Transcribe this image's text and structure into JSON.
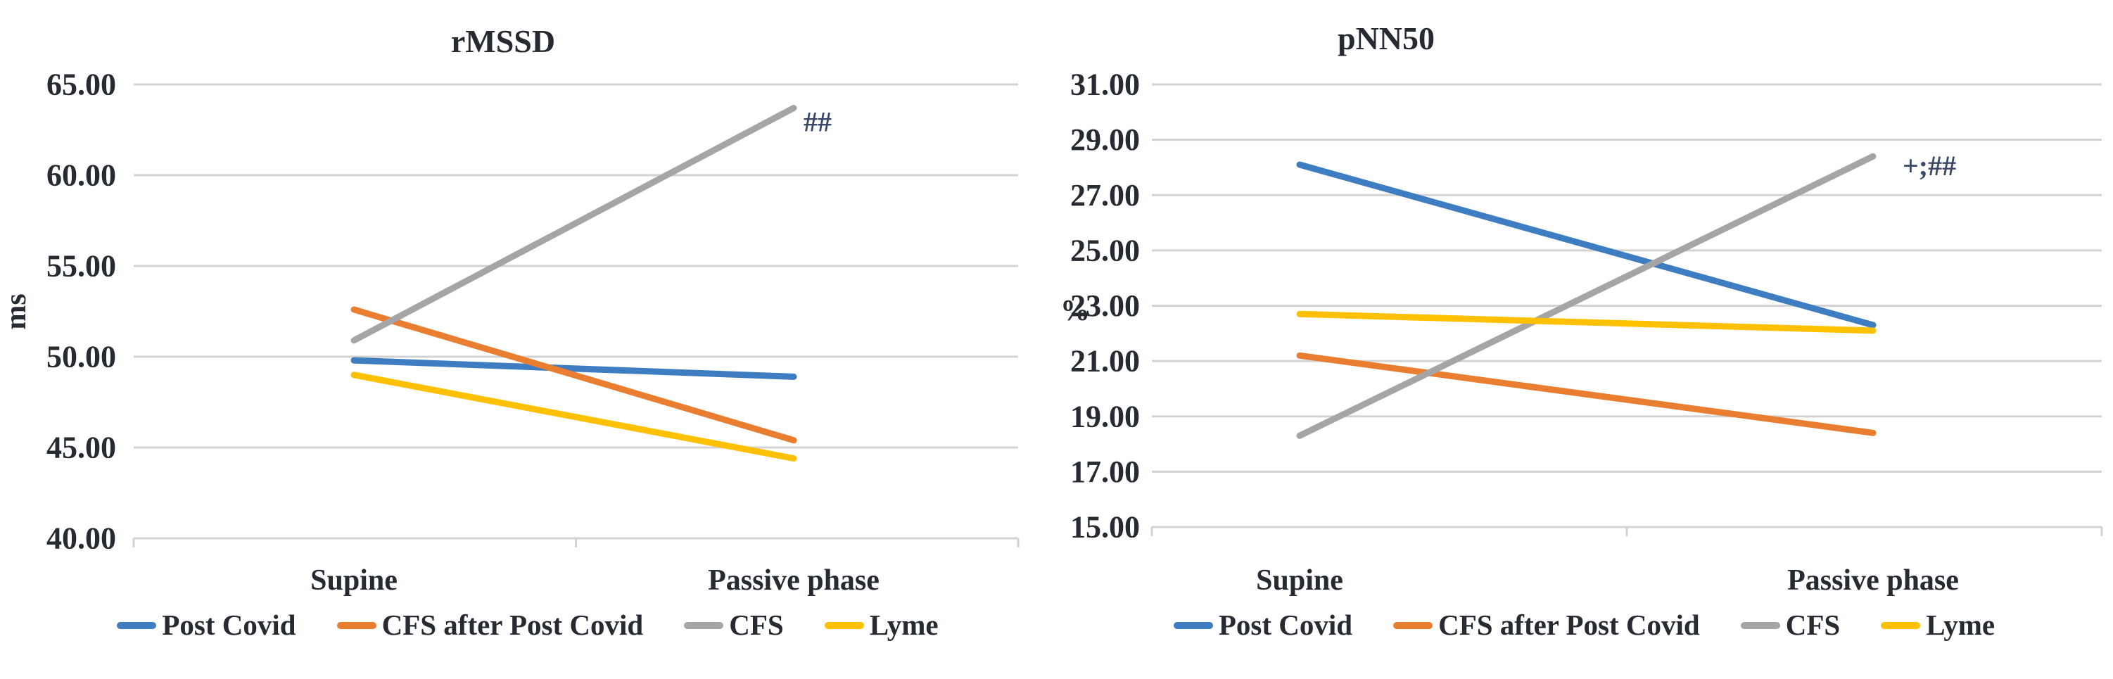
{
  "palette": {
    "text_color": "#262A31",
    "grid_color": "#D3D3D3",
    "annotation_color": "#3A4766",
    "background": "#FFFFFF"
  },
  "chart_data": [
    {
      "type": "line",
      "title": "rMSSD",
      "y_axis_label": "ms",
      "categories": [
        "Supine",
        "Passive phase"
      ],
      "y_ticks": [
        65,
        60,
        55,
        50,
        45,
        40
      ],
      "tick_format_decimals": 2,
      "ylim": [
        40,
        65
      ],
      "grid": true,
      "legend_position": "bottom",
      "annotation": {
        "text": "##",
        "attached_to_series": "CFS",
        "at_category": "Passive phase"
      },
      "series": [
        {
          "name": "Post Covid",
          "color": "#3E7DC1",
          "values": [
            49.8,
            48.9
          ]
        },
        {
          "name": "CFS after Post Covid",
          "color": "#E97E30",
          "values": [
            52.6,
            45.4
          ]
        },
        {
          "name": "CFS",
          "color": "#A5A5A5",
          "values": [
            50.9,
            63.7
          ]
        },
        {
          "name": "Lyme",
          "color": "#FFC000",
          "values": [
            49.0,
            44.4
          ]
        }
      ]
    },
    {
      "type": "line",
      "title": "pNN50",
      "y_axis_label": "%",
      "categories": [
        "Supine",
        "Passive phase"
      ],
      "y_ticks": [
        31,
        29,
        27,
        25,
        23,
        21,
        19,
        17,
        15
      ],
      "tick_format_decimals": 2,
      "ylim": [
        15,
        31
      ],
      "grid": true,
      "legend_position": "bottom",
      "annotation": {
        "text": "+;##",
        "attached_to_series": "CFS",
        "at_category": "Passive phase"
      },
      "series": [
        {
          "name": "Post Covid",
          "color": "#3E7DC1",
          "values": [
            28.1,
            22.3
          ]
        },
        {
          "name": "CFS after Post Covid",
          "color": "#E97E30",
          "values": [
            21.2,
            18.4
          ]
        },
        {
          "name": "CFS",
          "color": "#A5A5A5",
          "values": [
            18.3,
            28.4
          ]
        },
        {
          "name": "Lyme",
          "color": "#FFC000",
          "values": [
            22.7,
            22.1
          ]
        }
      ]
    }
  ]
}
